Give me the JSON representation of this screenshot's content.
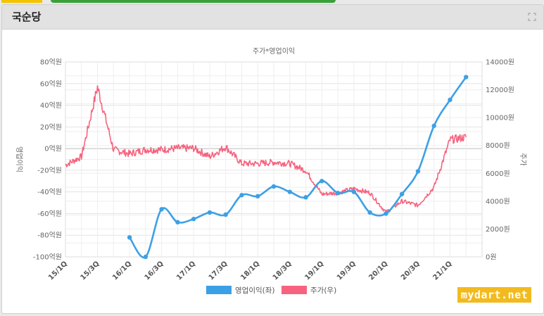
{
  "panel": {
    "title": "국순당"
  },
  "watermark": "mydart.net",
  "chart_data": {
    "type": "line",
    "title": "주가*영업이익",
    "ylabel_left": "영업이익",
    "ylabel_right": "주가",
    "ylim_left": [
      -100,
      80
    ],
    "ylim_right": [
      0,
      14000
    ],
    "left_ticks": [
      "80억원",
      "60억원",
      "40억원",
      "20억원",
      "0억원",
      "-20억원",
      "-40억원",
      "-60억원",
      "-80억원",
      "-100억원"
    ],
    "right_ticks": [
      "14000원",
      "12000원",
      "10000원",
      "8000원",
      "6000원",
      "4000원",
      "2000원",
      "0원"
    ],
    "x_ticks": [
      "15/1Q",
      "15/3Q",
      "16/1Q",
      "16/3Q",
      "17/1Q",
      "17/3Q",
      "18/1Q",
      "18/3Q",
      "19/1Q",
      "19/3Q",
      "20/1Q",
      "20/3Q",
      "21/1Q"
    ],
    "grid": true,
    "legend_position": "bottom",
    "series": [
      {
        "name": "영업이익(좌)",
        "axis": "left",
        "color": "#3ca0e6",
        "x": [
          "16/1Q",
          "16/2Q",
          "16/3Q",
          "16/4Q",
          "17/1Q",
          "17/2Q",
          "17/3Q",
          "17/4Q",
          "18/1Q",
          "18/2Q",
          "18/3Q",
          "18/4Q",
          "19/1Q",
          "19/2Q",
          "19/3Q",
          "19/4Q",
          "20/1Q",
          "20/2Q",
          "20/3Q",
          "20/4Q",
          "21/1Q",
          "21/2Q"
        ],
        "values": [
          -82,
          -100,
          -56,
          -68,
          -65,
          -59,
          -61,
          -43,
          -44,
          -35,
          -40,
          -45,
          -30,
          -41,
          -40,
          -59,
          -60,
          -42,
          -21,
          21,
          45,
          66
        ]
      },
      {
        "name": "주가(우)",
        "axis": "right",
        "color": "#f7637f",
        "x": [
          "15/1Q",
          "15/2Q",
          "15/3Q",
          "15/4Q",
          "16/1Q",
          "16/2Q",
          "16/3Q",
          "16/4Q",
          "17/1Q",
          "17/2Q",
          "17/3Q",
          "17/4Q",
          "18/1Q",
          "18/2Q",
          "18/3Q",
          "18/4Q",
          "19/1Q",
          "19/2Q",
          "19/3Q",
          "19/4Q",
          "20/1Q",
          "20/2Q",
          "20/3Q",
          "20/4Q",
          "21/1Q",
          "21/2Q"
        ],
        "values": [
          6600,
          7200,
          12200,
          7700,
          7400,
          7700,
          7700,
          7800,
          7800,
          7200,
          7900,
          6700,
          6700,
          6800,
          6700,
          6200,
          4500,
          4600,
          4900,
          4600,
          3200,
          4000,
          3700,
          5000,
          8400,
          8600
        ]
      }
    ]
  }
}
